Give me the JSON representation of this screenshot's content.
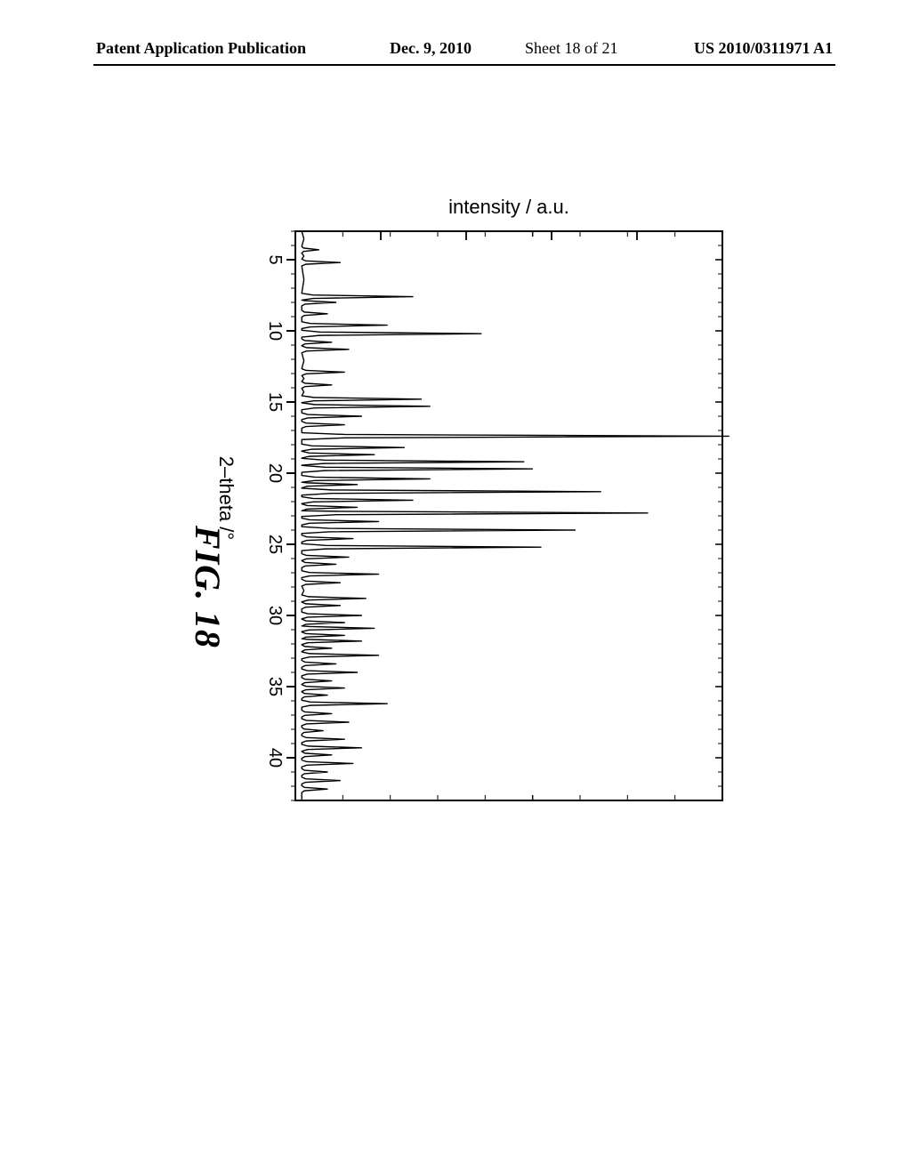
{
  "header": {
    "publication": "Patent Application Publication",
    "date": "Dec. 9, 2010",
    "sheet": "Sheet 18 of 21",
    "us_number": "US 2010/0311971 A1"
  },
  "figure_label": "FIG.  18",
  "chart": {
    "type": "xrd-line",
    "x_label": "2–theta /°",
    "y_label": "intensity / a.u.",
    "background_color": "#ffffff",
    "line_color": "#000000",
    "line_width": 1.4,
    "axis_color": "#000000",
    "axis_width": 2,
    "xlim": [
      3,
      43
    ],
    "xticks": [
      5,
      10,
      15,
      20,
      25,
      30,
      35,
      40
    ],
    "minor_tick_step": 1,
    "ylim": [
      0,
      100
    ],
    "y_show_ticks": false,
    "y_minor_count": 9,
    "peaks": [
      {
        "x": 4.3,
        "h": 4
      },
      {
        "x": 5.2,
        "h": 9
      },
      {
        "x": 7.6,
        "h": 26
      },
      {
        "x": 8.0,
        "h": 8
      },
      {
        "x": 8.8,
        "h": 6
      },
      {
        "x": 9.6,
        "h": 20
      },
      {
        "x": 10.2,
        "h": 42
      },
      {
        "x": 10.8,
        "h": 7
      },
      {
        "x": 11.3,
        "h": 11
      },
      {
        "x": 12.9,
        "h": 10
      },
      {
        "x": 13.8,
        "h": 7
      },
      {
        "x": 14.8,
        "h": 28
      },
      {
        "x": 15.3,
        "h": 30
      },
      {
        "x": 16.0,
        "h": 14
      },
      {
        "x": 16.6,
        "h": 10
      },
      {
        "x": 17.4,
        "h": 100
      },
      {
        "x": 18.2,
        "h": 24
      },
      {
        "x": 18.7,
        "h": 17
      },
      {
        "x": 19.2,
        "h": 52
      },
      {
        "x": 19.7,
        "h": 54
      },
      {
        "x": 20.4,
        "h": 30
      },
      {
        "x": 20.8,
        "h": 13
      },
      {
        "x": 21.3,
        "h": 70
      },
      {
        "x": 21.9,
        "h": 26
      },
      {
        "x": 22.4,
        "h": 13
      },
      {
        "x": 22.8,
        "h": 81
      },
      {
        "x": 23.4,
        "h": 18
      },
      {
        "x": 24.0,
        "h": 64
      },
      {
        "x": 24.6,
        "h": 12
      },
      {
        "x": 25.2,
        "h": 56
      },
      {
        "x": 25.9,
        "h": 11
      },
      {
        "x": 26.4,
        "h": 8
      },
      {
        "x": 27.1,
        "h": 18
      },
      {
        "x": 27.7,
        "h": 9
      },
      {
        "x": 28.8,
        "h": 15
      },
      {
        "x": 29.3,
        "h": 9
      },
      {
        "x": 30.0,
        "h": 14
      },
      {
        "x": 30.5,
        "h": 10
      },
      {
        "x": 30.9,
        "h": 17
      },
      {
        "x": 31.4,
        "h": 10
      },
      {
        "x": 31.8,
        "h": 14
      },
      {
        "x": 32.3,
        "h": 7
      },
      {
        "x": 32.8,
        "h": 18
      },
      {
        "x": 33.4,
        "h": 8
      },
      {
        "x": 34.0,
        "h": 13
      },
      {
        "x": 34.6,
        "h": 7
      },
      {
        "x": 35.1,
        "h": 10
      },
      {
        "x": 35.6,
        "h": 6
      },
      {
        "x": 36.2,
        "h": 20
      },
      {
        "x": 36.9,
        "h": 7
      },
      {
        "x": 37.5,
        "h": 11
      },
      {
        "x": 38.1,
        "h": 5
      },
      {
        "x": 38.7,
        "h": 10
      },
      {
        "x": 39.3,
        "h": 14
      },
      {
        "x": 39.8,
        "h": 7
      },
      {
        "x": 40.4,
        "h": 12
      },
      {
        "x": 41.0,
        "h": 6
      },
      {
        "x": 41.6,
        "h": 9
      },
      {
        "x": 42.2,
        "h": 6
      }
    ],
    "baseline": 1.5,
    "peak_hw": 0.12,
    "label_fontsize": 22,
    "tick_fontsize": 20
  }
}
